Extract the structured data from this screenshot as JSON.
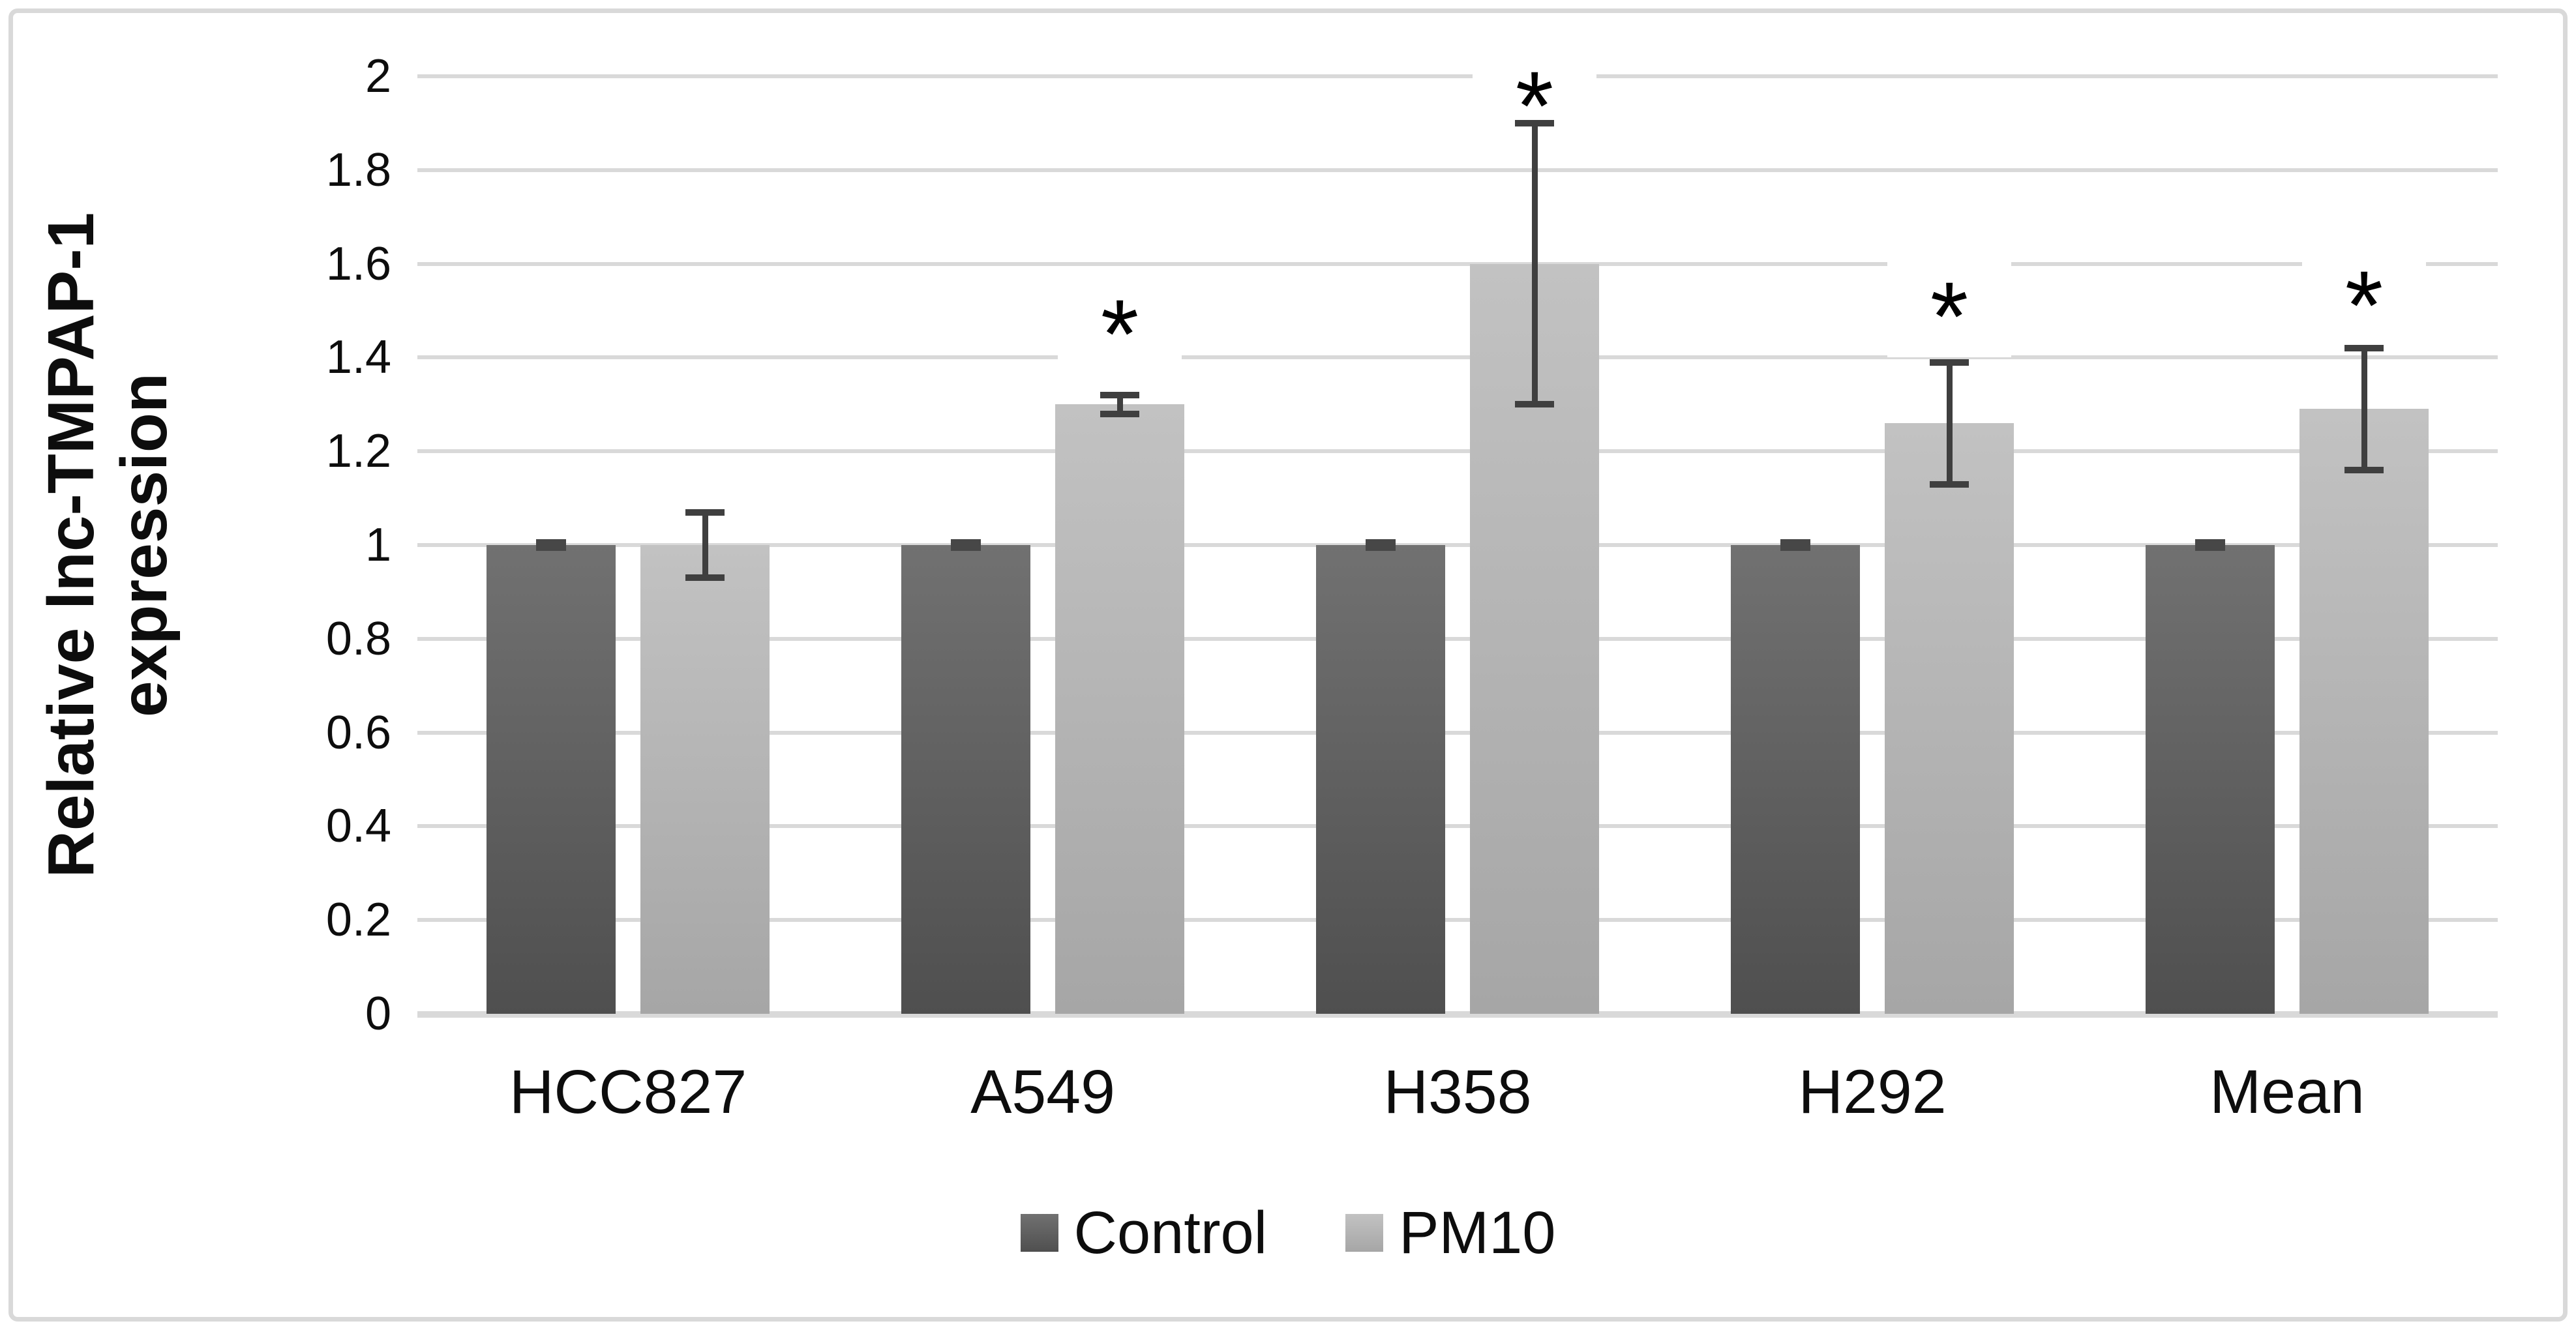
{
  "chart_data": {
    "type": "bar",
    "title": "",
    "ylabel_line1": "Relative lnc-TMPAP-1",
    "ylabel_line2": "expression",
    "xlabel": "",
    "categories": [
      "HCC827",
      "A549",
      "H358",
      "H292",
      "Mean"
    ],
    "series": [
      {
        "name": "Control",
        "values": [
          1.0,
          1.0,
          1.0,
          1.0,
          1.0
        ],
        "errors_plus": [
          0.01,
          0.01,
          0.01,
          0.01,
          0.01
        ],
        "errors_minus": [
          0.01,
          0.01,
          0.01,
          0.01,
          0.01
        ],
        "significant": [
          false,
          false,
          false,
          false,
          false
        ],
        "color_top": "#717171",
        "color_bottom": "#4f4f4f"
      },
      {
        "name": "PM10",
        "values": [
          1.0,
          1.3,
          1.6,
          1.26,
          1.29
        ],
        "errors_plus": [
          0.07,
          0.02,
          0.3,
          0.13,
          0.13
        ],
        "errors_minus": [
          0.07,
          0.02,
          0.3,
          0.13,
          0.13
        ],
        "significant": [
          false,
          true,
          true,
          true,
          true
        ],
        "color_top": "#c2c2c2",
        "color_bottom": "#a6a6a6"
      }
    ],
    "y_ticks": [
      "0",
      "0.2",
      "0.4",
      "0.6",
      "0.8",
      "1",
      "1.2",
      "1.4",
      "1.6",
      "1.8",
      "2"
    ],
    "ylim": [
      0,
      2
    ],
    "grid": true,
    "legend_position": "bottom",
    "significance_marker": "*",
    "colors": {
      "gridline": "#d9d9d9",
      "axis_line": "#d9d9d9",
      "frame_border": "#d9d9d9",
      "error_bar": "#3f3f3f",
      "text": "#0d0d0d",
      "background": "#ffffff"
    }
  }
}
